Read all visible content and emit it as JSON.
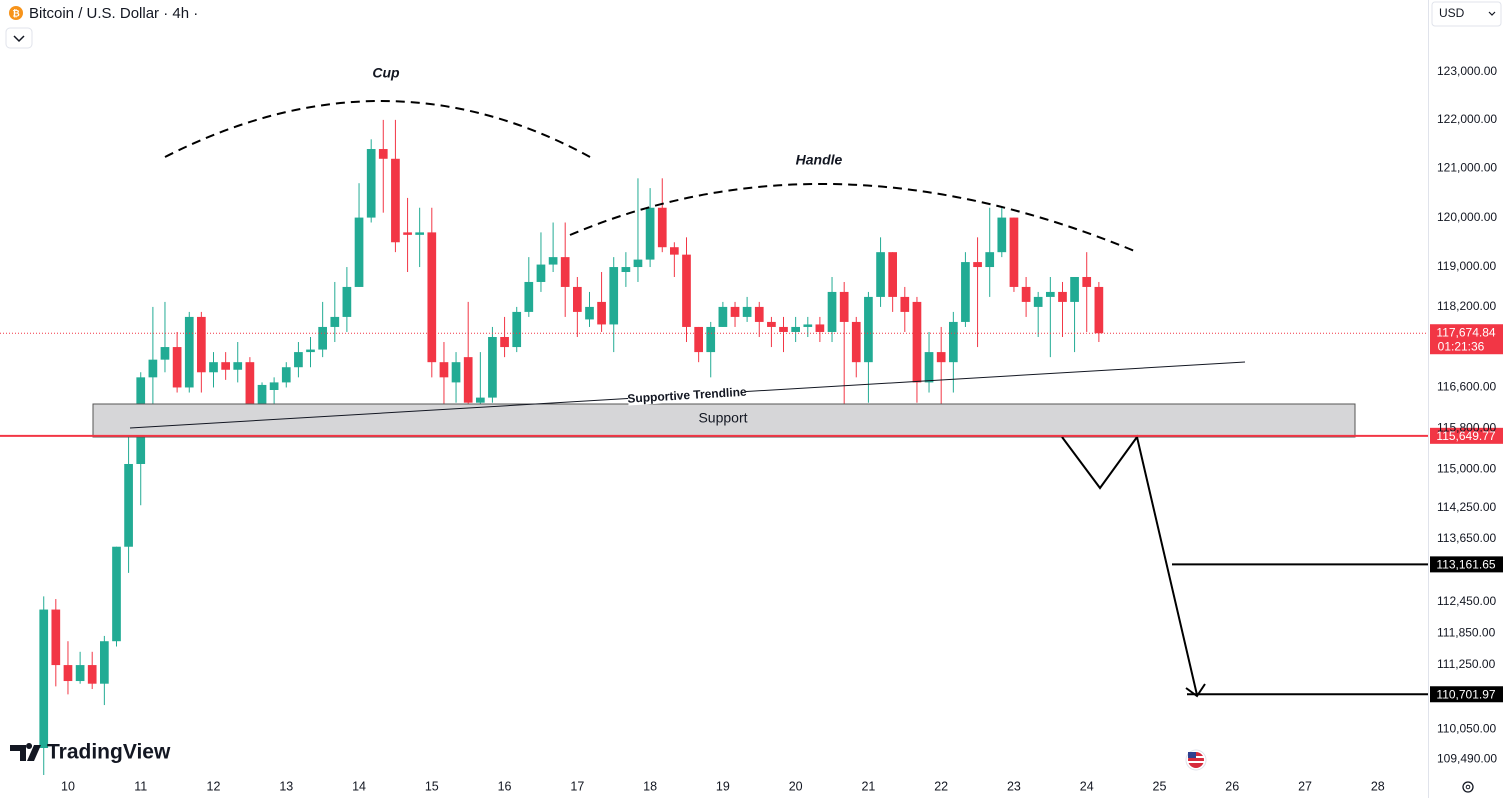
{
  "chart_data": {
    "type": "candlestick",
    "title": "Bitcoin / U.S. Dollar · 4h ·",
    "currency": "USD",
    "brand": "TradingView",
    "log_scale": true,
    "up_color": "#22ab94",
    "down_color": "#f23645",
    "x": [
      9.667,
      9.833,
      10,
      10.167,
      10.333,
      10.5,
      10.667,
      10.833,
      11,
      11.167,
      11.333,
      11.5,
      11.667,
      11.833,
      12,
      12.167,
      12.333,
      12.5,
      12.667,
      12.833,
      13,
      13.167,
      13.333,
      13.5,
      13.667,
      13.833,
      14,
      14.167,
      14.333,
      14.5,
      14.667,
      14.833,
      15,
      15.167,
      15.333,
      15.5,
      15.667,
      15.833,
      16,
      16.167,
      16.333,
      16.5,
      16.667,
      16.833,
      17,
      17.167,
      17.333,
      17.5,
      17.667,
      17.833,
      18,
      18.167,
      18.333,
      18.5,
      18.667,
      18.833,
      19,
      19.167,
      19.333,
      19.5,
      19.667,
      19.833,
      20,
      20.167,
      20.333,
      20.5,
      20.667,
      20.833,
      21,
      21.167,
      21.333,
      21.5,
      21.667,
      21.833,
      22,
      22.167,
      22.333,
      22.5,
      22.667,
      22.833,
      23,
      23.167,
      23.333,
      23.5,
      23.667,
      23.833,
      24,
      24.167
    ],
    "open": [
      109700,
      112300,
      111250,
      110950,
      111250,
      110900,
      111700,
      113500,
      115100,
      116800,
      117150,
      117400,
      116600,
      118000,
      116900,
      117100,
      116950,
      117100,
      116200,
      116550,
      116700,
      117000,
      117300,
      117350,
      117800,
      118000,
      118600,
      120000,
      121400,
      121200,
      119700,
      119650,
      119700,
      117100,
      116700,
      117200,
      116300,
      116400,
      117600,
      117400,
      118100,
      118700,
      119050,
      119200,
      118600,
      117950,
      118300,
      117850,
      118900,
      119000,
      119150,
      120200,
      119400,
      119250,
      117800,
      117300,
      117800,
      118200,
      118000,
      118200,
      117900,
      117800,
      117700,
      117800,
      117850,
      117700,
      118500,
      117900,
      117100,
      118400,
      119300,
      118400,
      118300,
      116700,
      117300,
      117100,
      117900,
      119100,
      119000,
      119300,
      120000,
      118600,
      118200,
      118400,
      118500,
      118300,
      118800,
      118600
    ],
    "high": [
      112550,
      112500,
      111700,
      111500,
      111500,
      111800,
      113500,
      115800,
      116900,
      118200,
      118300,
      117700,
      118100,
      118100,
      117300,
      117300,
      117500,
      117200,
      116700,
      116800,
      117100,
      117500,
      117600,
      118300,
      118700,
      119000,
      120700,
      121600,
      122000,
      122000,
      120400,
      120200,
      120200,
      117500,
      117300,
      118300,
      117300,
      117800,
      118000,
      118200,
      119200,
      119700,
      119900,
      119900,
      118800,
      118500,
      118900,
      119200,
      119300,
      120800,
      120600,
      120800,
      119500,
      119600,
      117800,
      117900,
      118300,
      118300,
      118400,
      118300,
      118000,
      118000,
      118000,
      118000,
      118000,
      118800,
      118700,
      118000,
      118500,
      119600,
      119300,
      118600,
      118400,
      117700,
      117800,
      118100,
      119300,
      119600,
      120200,
      120200,
      120000,
      118800,
      118500,
      118800,
      118700,
      118800,
      119300,
      118700
    ],
    "low": [
      109200,
      110850,
      110700,
      110900,
      110800,
      110500,
      111600,
      113000,
      114300,
      115800,
      116900,
      116500,
      116500,
      116500,
      116600,
      116750,
      116700,
      116100,
      116100,
      116200,
      116600,
      116800,
      117000,
      117200,
      117500,
      117700,
      118600,
      119900,
      120100,
      119300,
      118900,
      119000,
      116800,
      116200,
      116300,
      115700,
      116200,
      116300,
      117200,
      117300,
      118000,
      118500,
      118900,
      118000,
      117600,
      117800,
      117700,
      117300,
      118600,
      118700,
      119000,
      119300,
      118800,
      117500,
      117100,
      116800,
      117800,
      117800,
      117900,
      117600,
      117400,
      117300,
      117500,
      117600,
      117500,
      117500,
      116000,
      116800,
      116300,
      118200,
      118100,
      117700,
      116300,
      116500,
      116000,
      116500,
      117800,
      117400,
      118400,
      119200,
      118500,
      118000,
      117600,
      117200,
      117600,
      117300,
      117700,
      117500
    ],
    "close": [
      112300,
      111250,
      110950,
      111250,
      110900,
      111700,
      113500,
      115100,
      116800,
      117150,
      117400,
      116600,
      118000,
      116900,
      117100,
      116950,
      117100,
      116200,
      116650,
      116700,
      117000,
      117300,
      117350,
      117800,
      118000,
      118600,
      120000,
      121400,
      121200,
      119500,
      119650,
      119700,
      117100,
      116800,
      117100,
      116300,
      116400,
      117600,
      117400,
      118100,
      118700,
      119050,
      119200,
      118600,
      118100,
      118200,
      117850,
      119000,
      119000,
      119150,
      120200,
      119400,
      119250,
      117800,
      117300,
      117800,
      118200,
      118000,
      118200,
      117900,
      117800,
      117700,
      117800,
      117850,
      117700,
      118500,
      117900,
      117100,
      118400,
      119300,
      118400,
      118100,
      116700,
      117300,
      117100,
      117900,
      119100,
      119000,
      119300,
      120000,
      118600,
      118300,
      118400,
      118500,
      118300,
      118800,
      118600,
      117674.84
    ],
    "xlim": [
      9.066,
      28.69
    ],
    "xticks": [
      10,
      11,
      12,
      13,
      14,
      15,
      16,
      17,
      18,
      19,
      20,
      21,
      22,
      23,
      24,
      25,
      26,
      27,
      28
    ],
    "ylim": [
      109200,
      124500
    ],
    "yticks": [
      {
        "value": 123000,
        "label": "123,000.00"
      },
      {
        "value": 122000,
        "label": "122,000.00"
      },
      {
        "value": 121000,
        "label": "121,000.00"
      },
      {
        "value": 120000,
        "label": "120,000.00"
      },
      {
        "value": 119000,
        "label": "119,000.00"
      },
      {
        "value": 118200,
        "label": "118,200.00"
      },
      {
        "value": 116600,
        "label": "116,600.00"
      },
      {
        "value": 115800,
        "label": "115,800.00"
      },
      {
        "value": 115000,
        "label": "115,000.00"
      },
      {
        "value": 114250,
        "label": "114,250.00"
      },
      {
        "value": 113650,
        "label": "113,650.00"
      },
      {
        "value": 112450,
        "label": "112,450.00"
      },
      {
        "value": 111850,
        "label": "111,850.00"
      },
      {
        "value": 111250,
        "label": "111,250.00"
      },
      {
        "value": 110050,
        "label": "110,050.00"
      },
      {
        "value": 109490,
        "label": "109,490.00"
      }
    ],
    "last_price": {
      "value": 117674.84,
      "label": "117,674.84"
    },
    "countdown": "01:21:36",
    "levels": [
      {
        "value": 115649.77,
        "label": "115,649.77",
        "color": "#f23645"
      },
      {
        "value": 113161.65,
        "label": "113,161.65",
        "color": "#000000"
      },
      {
        "value": 110701.97,
        "label": "110,701.97",
        "color": "#000000"
      }
    ],
    "annotations": {
      "cup": "Cup",
      "handle": "Handle",
      "trendline": "Supportive Trendline",
      "support": "Support"
    }
  }
}
